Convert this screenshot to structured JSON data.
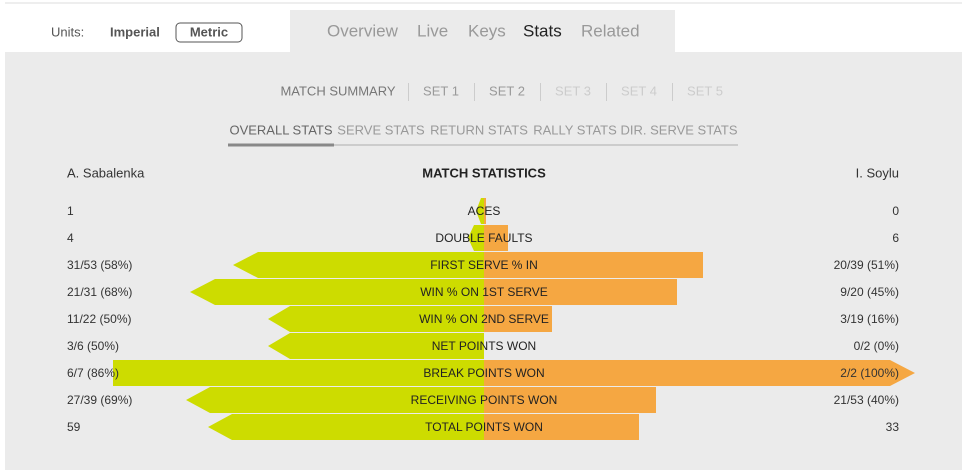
{
  "units": {
    "label": "Units:",
    "options": [
      "Imperial",
      "Metric"
    ]
  },
  "tabs": [
    "Overview",
    "Live",
    "Keys",
    "Stats",
    "Related"
  ],
  "set_tabs": [
    "MATCH SUMMARY",
    "SET 1",
    "SET 2",
    "SET 3",
    "SET 4",
    "SET 5"
  ],
  "stat_tabs": [
    "OVERALL STATS",
    "SERVE STATS",
    "RETURN STATS",
    "RALLY STATS",
    "DIR. SERVE STATS"
  ],
  "players": [
    "A. Sabalenka",
    "I. Soylu"
  ],
  "title": "MATCH STATISTICS",
  "rows": [
    {
      "left": "1",
      "label": "ACES",
      "right": "0"
    },
    {
      "left": "4",
      "label": "DOUBLE FAULTS",
      "right": "6"
    },
    {
      "left": "31/53 (58%)",
      "label": "FIRST SERVE % IN",
      "right": "20/39 (51%)"
    },
    {
      "left": "21/31 (68%)",
      "label": "WIN % ON 1ST SERVE",
      "right": "9/20 (45%)"
    },
    {
      "left": "11/22 (50%)",
      "label": "WIN % ON 2ND SERVE",
      "right": "3/19 (16%)"
    },
    {
      "left": "3/6 (50%)",
      "label": "NET POINTS WON",
      "right": "0/2 (0%)"
    },
    {
      "left": "6/7 (86%)",
      "label": "BREAK POINTS WON",
      "right": "2/2 (100%)"
    },
    {
      "left": "27/39 (69%)",
      "label": "RECEIVING POINTS WON",
      "right": "21/53 (40%)"
    },
    {
      "left": "59",
      "label": "TOTAL POINTS WON",
      "right": "33"
    }
  ]
}
